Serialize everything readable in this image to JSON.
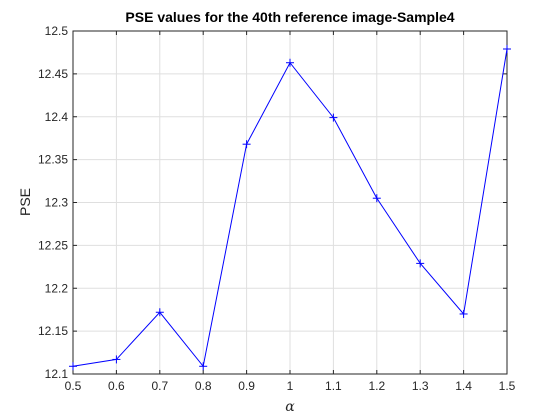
{
  "chart_data": {
    "type": "line",
    "title": "PSE values for the 40th reference image-Sample4",
    "xlabel": "α",
    "ylabel": "PSE",
    "xlim": [
      0.5,
      1.5
    ],
    "ylim": [
      12.1,
      12.5
    ],
    "xticks": [
      "0.5",
      "0.6",
      "0.7",
      "0.8",
      "0.9",
      "1",
      "1.1",
      "1.2",
      "1.3",
      "1.4",
      "1.5"
    ],
    "yticks": [
      "12.1",
      "12.15",
      "12.2",
      "12.25",
      "12.3",
      "12.35",
      "12.4",
      "12.45",
      "12.5"
    ],
    "grid": true,
    "marker": "+",
    "series": [
      {
        "color": "#0000ff",
        "x": [
          0.5,
          0.6,
          0.7,
          0.8,
          0.9,
          1.0,
          1.1,
          1.2,
          1.3,
          1.4,
          1.5
        ],
        "values": [
          12.109,
          12.117,
          12.172,
          12.109,
          12.368,
          12.463,
          12.399,
          12.305,
          12.229,
          12.17,
          12.479
        ]
      }
    ]
  }
}
